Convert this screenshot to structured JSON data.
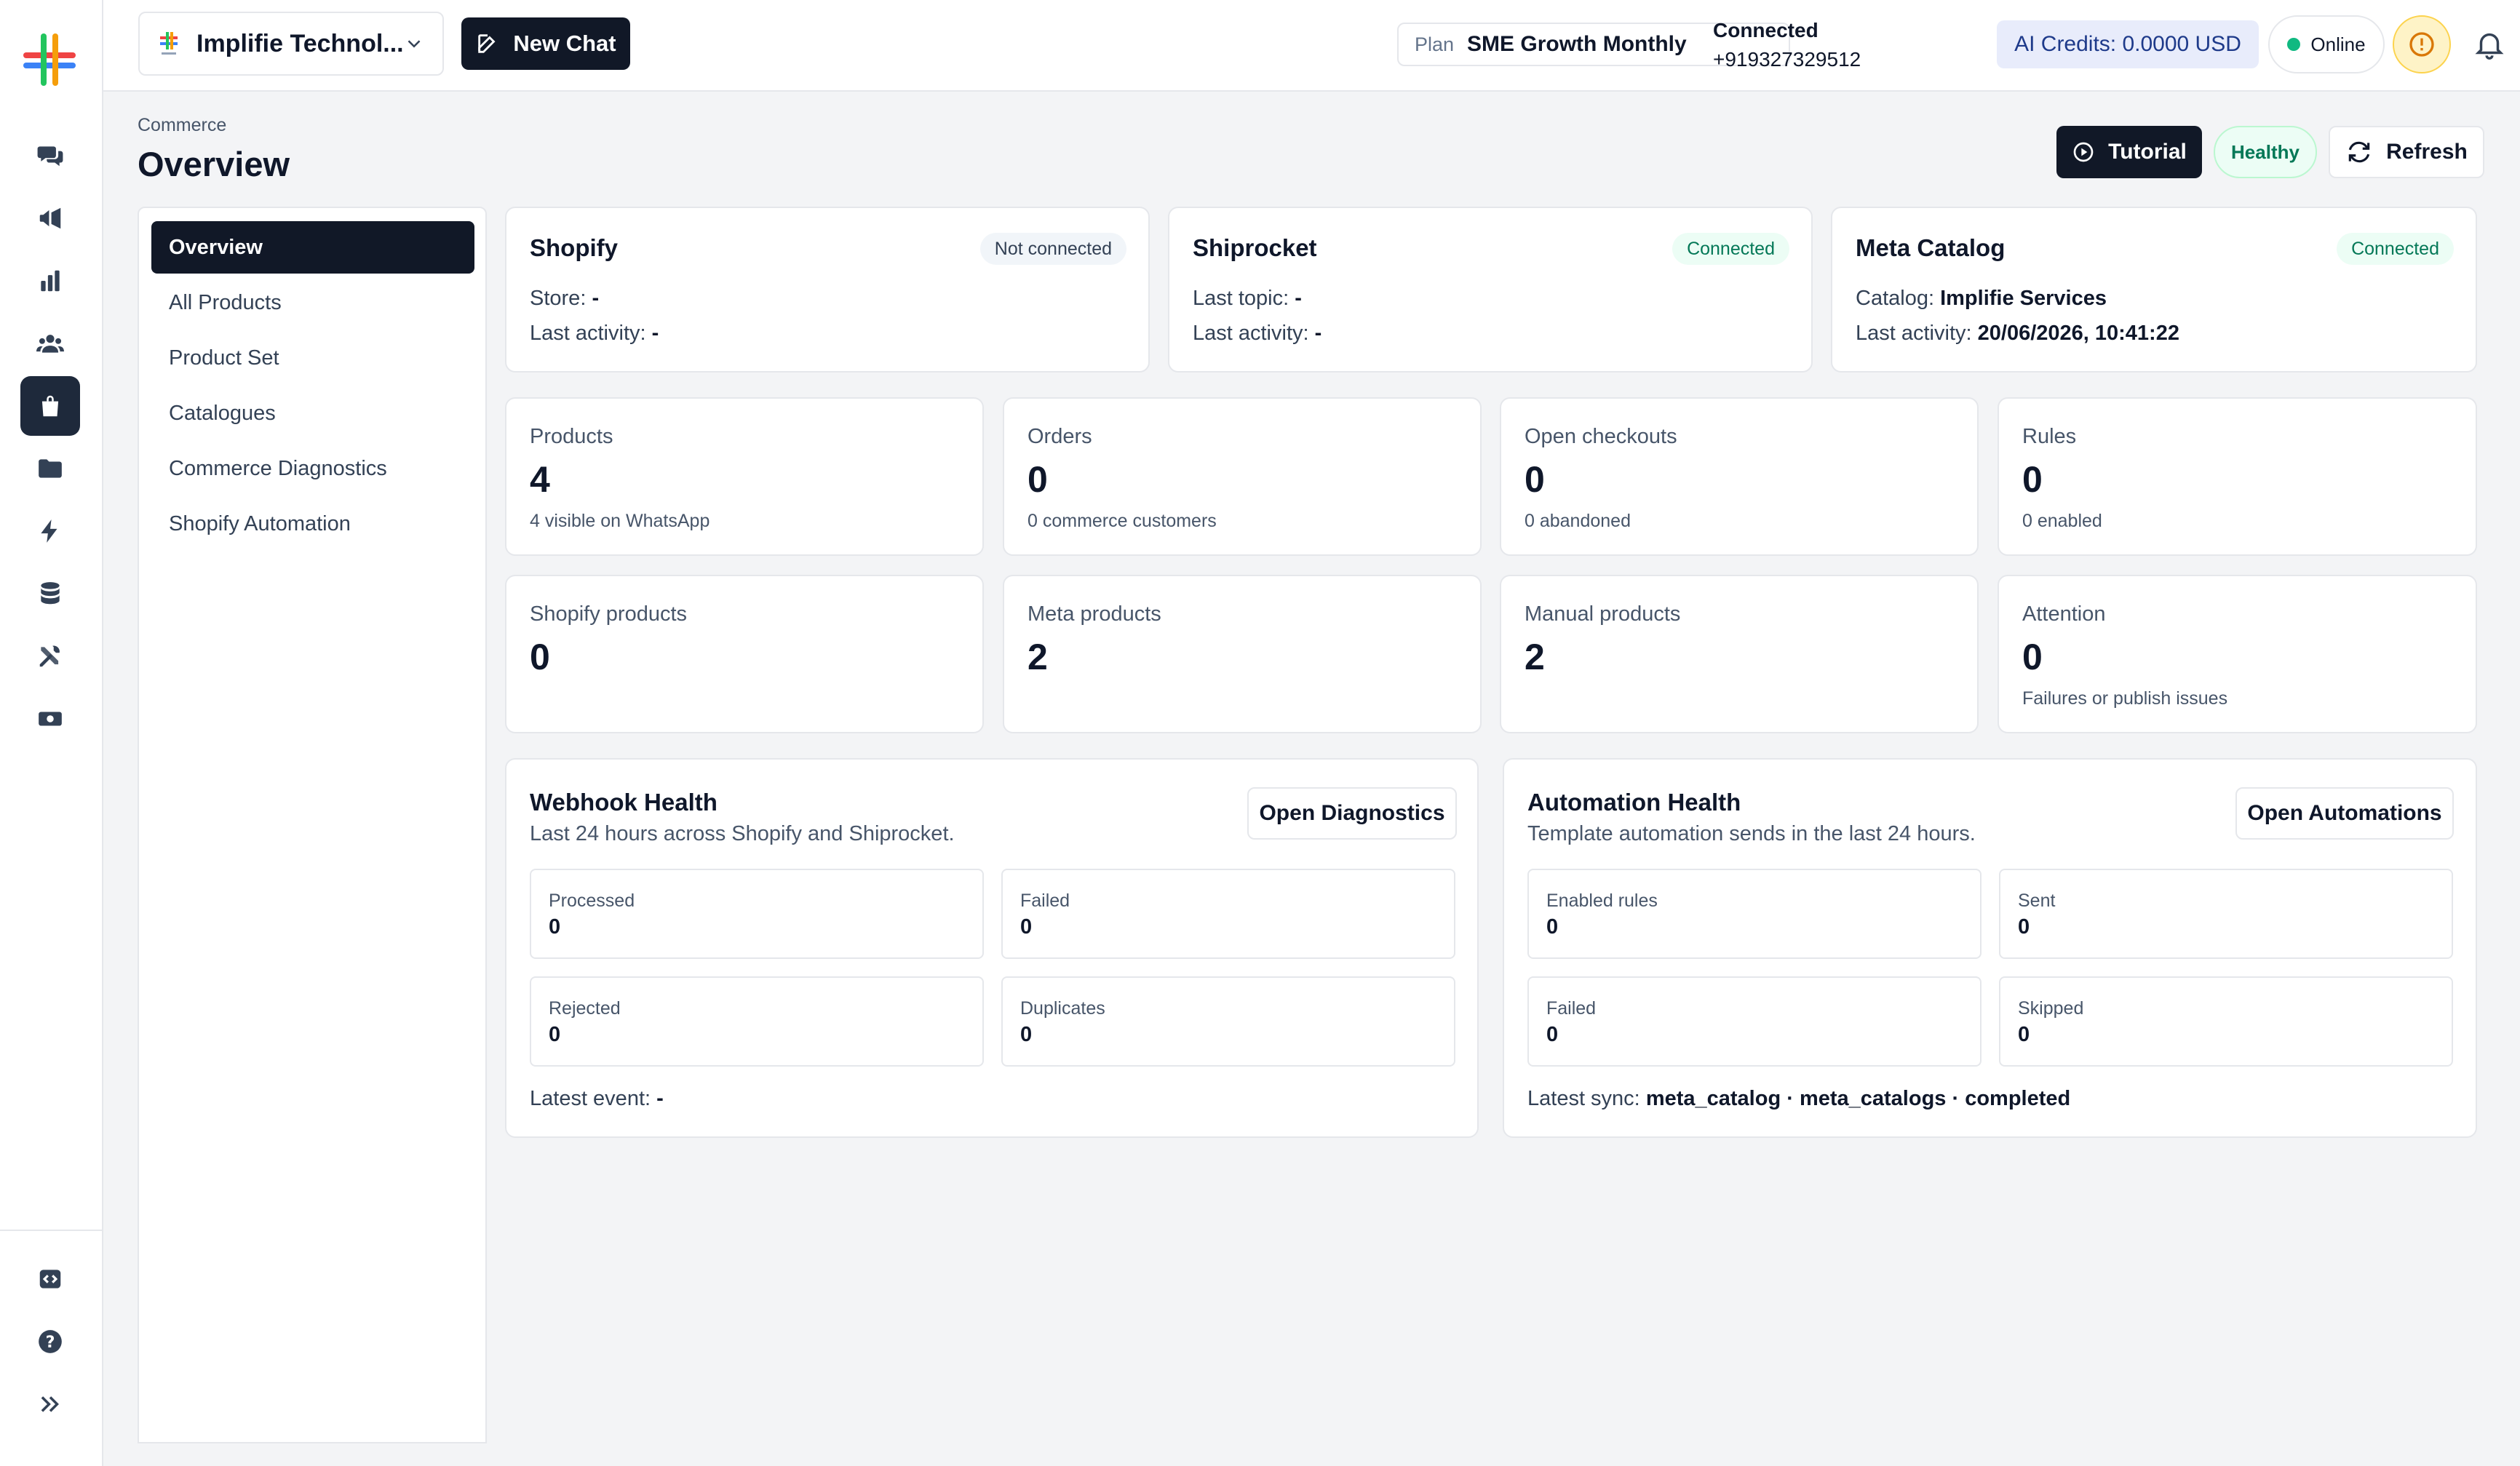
{
  "rail": {
    "icons": [
      "chat-bubbles-icon",
      "megaphone-icon",
      "bar-chart-icon",
      "users-icon",
      "shopping-bag-icon",
      "folder-icon",
      "lightning-icon",
      "database-icon",
      "tools-icon",
      "money-icon",
      "code-icon",
      "help-icon",
      "expand-icon"
    ],
    "active": "shopping-bag-icon"
  },
  "topbar": {
    "workspace_name": "Implifie Technol...",
    "new_chat_label": "New Chat",
    "plan_label": "Plan",
    "plan_value": "SME Growth Monthly",
    "connection_status": "Connected",
    "phone_number": "+919327329512",
    "ai_credits": "AI Credits: 0.0000 USD",
    "online_status": "Online"
  },
  "page": {
    "breadcrumb": "Commerce",
    "title": "Overview",
    "tutorial_label": "Tutorial",
    "health_badge": "Healthy",
    "refresh_label": "Refresh"
  },
  "subnav": {
    "items": [
      {
        "label": "Overview",
        "active": true
      },
      {
        "label": "All Products"
      },
      {
        "label": "Product Set"
      },
      {
        "label": "Catalogues"
      },
      {
        "label": "Commerce Diagnostics"
      },
      {
        "label": "Shopify Automation"
      }
    ]
  },
  "integrations": [
    {
      "name": "Shopify",
      "status": "Not connected",
      "line1_label": "Store:",
      "line1_value": "-",
      "line2_label": "Last activity:",
      "line2_value": "-"
    },
    {
      "name": "Shiprocket",
      "status": "Connected",
      "line1_label": "Last topic:",
      "line1_value": "-",
      "line2_label": "Last activity:",
      "line2_value": "-"
    },
    {
      "name": "Meta Catalog",
      "status": "Connected",
      "line1_label": "Catalog:",
      "line1_value": "Implifie Services",
      "line2_label": "Last activity:",
      "line2_value": "20/06/2026, 10:41:22"
    }
  ],
  "stats": [
    {
      "label": "Products",
      "value": "4",
      "sub": "4 visible on WhatsApp"
    },
    {
      "label": "Orders",
      "value": "0",
      "sub": "0 commerce customers"
    },
    {
      "label": "Open checkouts",
      "value": "0",
      "sub": "0 abandoned"
    },
    {
      "label": "Rules",
      "value": "0",
      "sub": "0 enabled"
    },
    {
      "label": "Shopify products",
      "value": "0",
      "sub": ""
    },
    {
      "label": "Meta products",
      "value": "2",
      "sub": ""
    },
    {
      "label": "Manual products",
      "value": "2",
      "sub": ""
    },
    {
      "label": "Attention",
      "value": "0",
      "sub": "Failures or publish issues"
    }
  ],
  "webhook": {
    "title": "Webhook Health",
    "description": "Last 24 hours across Shopify and Shiprocket.",
    "button": "Open Diagnostics",
    "metrics": [
      {
        "label": "Processed",
        "value": "0"
      },
      {
        "label": "Failed",
        "value": "0"
      },
      {
        "label": "Rejected",
        "value": "0"
      },
      {
        "label": "Duplicates",
        "value": "0"
      }
    ],
    "footer_label": "Latest event:",
    "footer_value": "-"
  },
  "automation": {
    "title": "Automation Health",
    "description": "Template automation sends in the last 24 hours.",
    "button": "Open Automations",
    "metrics": [
      {
        "label": "Enabled rules",
        "value": "0"
      },
      {
        "label": "Sent",
        "value": "0"
      },
      {
        "label": "Failed",
        "value": "0"
      },
      {
        "label": "Skipped",
        "value": "0"
      }
    ],
    "footer_label": "Latest sync:",
    "footer_value": "meta_catalog · meta_catalogs · completed"
  }
}
